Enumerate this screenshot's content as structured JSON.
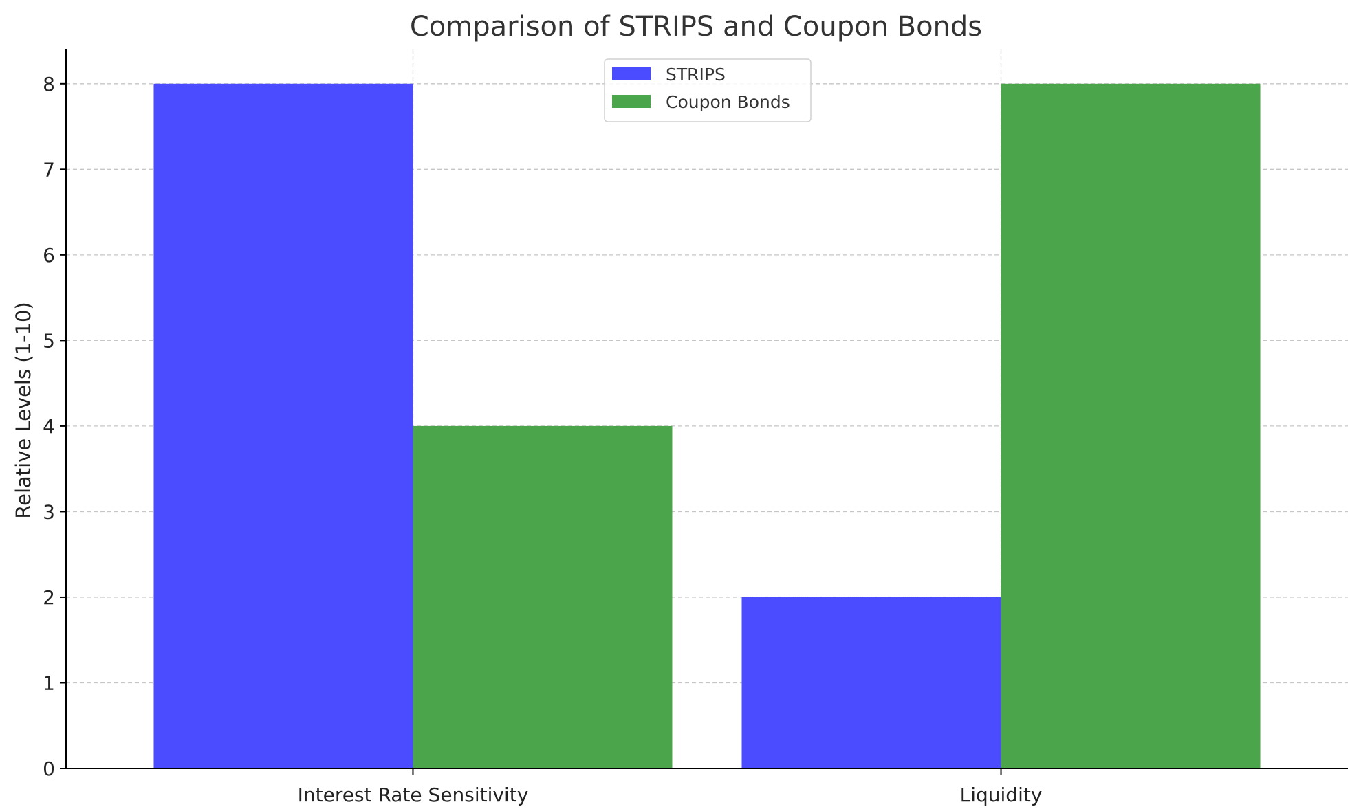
{
  "chart_data": {
    "type": "bar",
    "title": "Comparison of STRIPS and Coupon Bonds",
    "xlabel": "",
    "ylabel": "Relative Levels (1-10)",
    "categories": [
      "Interest Rate Sensitivity",
      "Liquidity"
    ],
    "series": [
      {
        "name": "STRIPS",
        "values": [
          8,
          2
        ],
        "color": "#4b4bff"
      },
      {
        "name": "Coupon Bonds",
        "values": [
          4,
          8
        ],
        "color": "#4ba64b"
      }
    ],
    "ylim": [
      0,
      8.4
    ],
    "yticks": [
      0,
      1,
      2,
      3,
      4,
      5,
      6,
      7,
      8
    ],
    "grid": true,
    "legend_position": "top-center"
  }
}
